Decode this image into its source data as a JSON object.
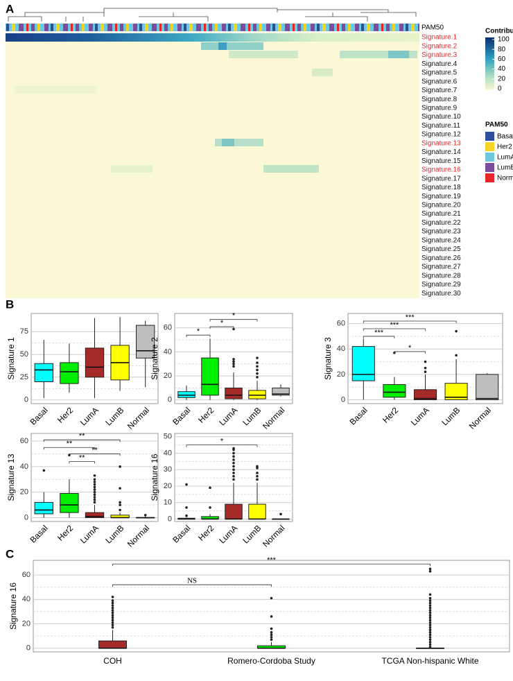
{
  "panels": [
    "A",
    "B",
    "C"
  ],
  "heatmap": {
    "annotation_label": "PAM50",
    "rows": [
      "Signature.1",
      "Signature.2",
      "Signature.3",
      "Signature.4",
      "Signature.5",
      "Signature.6",
      "Signature.7",
      "Signature.8",
      "Signature.9",
      "Signature.10",
      "Signature.11",
      "Signature.12",
      "Signature.13",
      "Signature.14",
      "Signature.15",
      "Signature.16",
      "Signature.17",
      "Signature.18",
      "Signature.19",
      "Signature.20",
      "Signature.21",
      "Signature.22",
      "Signature.23",
      "Signature.24",
      "Signature.25",
      "Signature.26",
      "Signature.27",
      "Signature.28",
      "Signature.29",
      "Signature.30"
    ],
    "highlight_rows": [
      0,
      1,
      2,
      12,
      15
    ],
    "highlight_color": "#e8262b",
    "contribution_legend": {
      "title": "Contribution",
      "ticks": [
        100,
        80,
        60,
        40,
        20,
        0
      ]
    },
    "pam50_legend": {
      "title": "PAM50",
      "items": [
        {
          "name": "Basal",
          "color": "#2f4f9e"
        },
        {
          "name": "Her2",
          "color": "#f5d327"
        },
        {
          "name": "LumA",
          "color": "#6cc8dc"
        },
        {
          "name": "LumB",
          "color": "#7d4c9e"
        },
        {
          "name": "Normal",
          "color": "#e8262b"
        }
      ]
    }
  },
  "chart_data": [
    {
      "type": "box",
      "ylabel": "Signature 1",
      "xlabel_rotation": 45,
      "categories": [
        "Basal",
        "Her2",
        "LumA",
        "LumB",
        "Normal"
      ],
      "colors": [
        "#00ffff",
        "#00ee00",
        "#a52a2a",
        "#ffff00",
        "#bebebe"
      ],
      "ylim": [
        -4,
        95
      ],
      "yticks": [
        0,
        25,
        50,
        75
      ],
      "boxes": [
        {
          "min": 2,
          "q1": 20,
          "median": 33,
          "q3": 40,
          "max": 66,
          "outliers": []
        },
        {
          "min": 8,
          "q1": 18,
          "median": 31,
          "q3": 41,
          "max": 62,
          "outliers": []
        },
        {
          "min": 2,
          "q1": 25,
          "median": 36,
          "q3": 57,
          "max": 90,
          "outliers": []
        },
        {
          "min": 10,
          "q1": 22,
          "median": 41,
          "q3": 60,
          "max": 91,
          "outliers": []
        },
        {
          "min": 14,
          "q1": 46,
          "median": 54,
          "q3": 82,
          "max": 87,
          "outliers": []
        }
      ],
      "brackets": []
    },
    {
      "type": "box",
      "ylabel": "Signature 2",
      "xlabel_rotation": 45,
      "categories": [
        "Basal",
        "Her2",
        "LumA",
        "LumB",
        "Normal"
      ],
      "colors": [
        "#00ffff",
        "#00ee00",
        "#a52a2a",
        "#ffff00",
        "#bebebe"
      ],
      "ylim": [
        -3,
        72
      ],
      "yticks": [
        0,
        20,
        40,
        60
      ],
      "boxes": [
        {
          "min": 0,
          "q1": 2,
          "median": 4,
          "q3": 7,
          "max": 12,
          "outliers": []
        },
        {
          "min": 0,
          "q1": 4,
          "median": 13,
          "q3": 35,
          "max": 51,
          "outliers": []
        },
        {
          "min": 0,
          "q1": 1,
          "median": 4,
          "q3": 10,
          "max": 23,
          "outliers": [
            28,
            30,
            32,
            34,
            59
          ]
        },
        {
          "min": 0,
          "q1": 1,
          "median": 4,
          "q3": 8,
          "max": 16,
          "outliers": [
            19,
            22,
            25,
            28,
            31,
            35
          ]
        },
        {
          "min": 3,
          "q1": 4,
          "median": 5,
          "q3": 10,
          "max": 13,
          "outliers": []
        }
      ],
      "brackets": [
        {
          "from": 0,
          "to": 1,
          "y": 54,
          "label": "*"
        },
        {
          "from": 1,
          "to": 2,
          "y": 61,
          "label": "*"
        },
        {
          "from": 1,
          "to": 3,
          "y": 67,
          "label": "*"
        }
      ]
    },
    {
      "type": "box",
      "ylabel": "Signature 3",
      "xlabel_rotation": 45,
      "categories": [
        "Basal",
        "Her2",
        "LumA",
        "LumB",
        "Normal"
      ],
      "colors": [
        "#00ffff",
        "#00ee00",
        "#a52a2a",
        "#ffff00",
        "#bebebe"
      ],
      "ylim": [
        -3,
        68
      ],
      "yticks": [
        0,
        20,
        40,
        60
      ],
      "boxes": [
        {
          "min": 0,
          "q1": 15,
          "median": 20,
          "q3": 42,
          "max": 48,
          "outliers": []
        },
        {
          "min": 0,
          "q1": 2,
          "median": 6,
          "q3": 12,
          "max": 18,
          "outliers": [
            37
          ]
        },
        {
          "min": 0,
          "q1": 0,
          "median": 1,
          "q3": 8,
          "max": 20,
          "outliers": [
            22,
            25,
            30
          ]
        },
        {
          "min": 0,
          "q1": 0,
          "median": 2,
          "q3": 13,
          "max": 32,
          "outliers": [
            35,
            54
          ]
        },
        {
          "min": 0,
          "q1": 0,
          "median": 1,
          "q3": 20,
          "max": 21,
          "outliers": []
        }
      ],
      "brackets": [
        {
          "from": 1,
          "to": 2,
          "y": 38,
          "label": "*"
        },
        {
          "from": 0,
          "to": 1,
          "y": 50,
          "label": "***"
        },
        {
          "from": 0,
          "to": 2,
          "y": 56,
          "label": "***"
        },
        {
          "from": 0,
          "to": 3,
          "y": 62,
          "label": "***"
        }
      ]
    },
    {
      "type": "box",
      "ylabel": "Signature 13",
      "xlabel_rotation": 45,
      "categories": [
        "Basal",
        "Her2",
        "LumA",
        "LumB",
        "Normal"
      ],
      "colors": [
        "#00ffff",
        "#00ee00",
        "#a52a2a",
        "#ffff00",
        "#bebebe"
      ],
      "ylim": [
        -3,
        66
      ],
      "yticks": [
        0,
        20,
        40,
        60
      ],
      "boxes": [
        {
          "min": 0,
          "q1": 3,
          "median": 6,
          "q3": 12,
          "max": 20,
          "outliers": [
            37
          ]
        },
        {
          "min": 0,
          "q1": 4,
          "median": 10,
          "q3": 19,
          "max": 30,
          "outliers": [
            49
          ]
        },
        {
          "min": 0,
          "q1": 0,
          "median": 1,
          "q3": 4,
          "max": 10,
          "outliers": [
            12,
            14,
            16,
            18,
            20,
            22,
            24,
            26,
            28,
            30,
            33
          ]
        },
        {
          "min": 0,
          "q1": 0,
          "median": 0,
          "q3": 2,
          "max": 4,
          "outliers": [
            6,
            10,
            12,
            23,
            40
          ]
        },
        {
          "min": 0,
          "q1": 0,
          "median": 0,
          "q3": 0,
          "max": 1,
          "outliers": [
            2
          ]
        }
      ],
      "brackets": [
        {
          "from": 1,
          "to": 2,
          "y": 44,
          "label": "**"
        },
        {
          "from": 1,
          "to": 3,
          "y": 50,
          "label": "**"
        },
        {
          "from": 0,
          "to": 2,
          "y": 55,
          "label": "**"
        },
        {
          "from": 0,
          "to": 3,
          "y": 61,
          "label": "**"
        }
      ]
    },
    {
      "type": "box",
      "ylabel": "Signature 16",
      "xlabel_rotation": 45,
      "categories": [
        "Basal",
        "Her2",
        "LumA",
        "LumB",
        "Normal"
      ],
      "colors": [
        "#00ffff",
        "#00ee00",
        "#a52a2a",
        "#ffff00",
        "#bebebe"
      ],
      "ylim": [
        -1.5,
        52
      ],
      "yticks": [
        0,
        10,
        20,
        30,
        40,
        50
      ],
      "boxes": [
        {
          "min": 0,
          "q1": 0,
          "median": 0,
          "q3": 0.5,
          "max": 1,
          "outliers": [
            2,
            7,
            21
          ]
        },
        {
          "min": 0,
          "q1": 0,
          "median": 0,
          "q3": 1.5,
          "max": 3,
          "outliers": [
            7,
            19
          ]
        },
        {
          "min": 0,
          "q1": 0,
          "median": 0,
          "q3": 9,
          "max": 22,
          "outliers": [
            24,
            26,
            28,
            30,
            32,
            34,
            36,
            38,
            40,
            42,
            43
          ]
        },
        {
          "min": 0,
          "q1": 0,
          "median": 0,
          "q3": 9,
          "max": 22,
          "outliers": [
            24,
            26,
            28,
            31,
            32
          ]
        },
        {
          "min": 0,
          "q1": 0,
          "median": 0,
          "q3": 0,
          "max": 0,
          "outliers": [
            3
          ]
        }
      ],
      "brackets": [
        {
          "from": 0,
          "to": 3,
          "y": 45,
          "label": "*"
        }
      ]
    },
    {
      "type": "box",
      "ylabel": "Signature 16",
      "xlabel_rotation": 0,
      "categories": [
        "COH",
        "Romero-Cordoba Study",
        "TCGA Non-hispanic White"
      ],
      "colors": [
        "#a52a2a",
        "#00ee00",
        "#bebebe"
      ],
      "ylim": [
        -3,
        72
      ],
      "yticks": [
        0,
        20,
        40,
        60
      ],
      "boxes": [
        {
          "min": 0,
          "q1": 0,
          "median": 0,
          "q3": 6,
          "max": 15,
          "outliers": [
            17,
            19,
            21,
            23,
            25,
            27,
            29,
            31,
            33,
            35,
            37,
            39,
            42
          ]
        },
        {
          "min": 0,
          "q1": 0,
          "median": 0,
          "q3": 2,
          "max": 5,
          "outliers": [
            7,
            9,
            11,
            13,
            16,
            26,
            41
          ]
        },
        {
          "min": 0,
          "q1": 0,
          "median": 0,
          "q3": 0,
          "max": 0,
          "outliers": [
            1,
            3,
            5,
            7,
            9,
            11,
            13,
            15,
            17,
            19,
            21,
            23,
            25,
            27,
            29,
            31,
            33,
            35,
            37,
            39,
            41,
            44,
            63,
            65
          ]
        }
      ],
      "brackets": [
        {
          "from": 0,
          "to": 1,
          "y": 52,
          "label": "NS"
        },
        {
          "from": 0,
          "to": 2,
          "y": 69,
          "label": "***"
        }
      ]
    }
  ]
}
